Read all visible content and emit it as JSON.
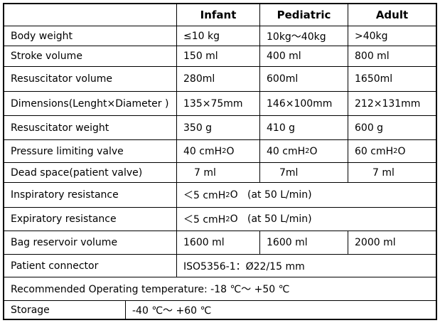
{
  "headers": {
    "infant": "Infant",
    "pediatric": "Pediatric",
    "adult": "Adult"
  },
  "rows": [
    {
      "label": "Body weight",
      "infant": "≤10 kg",
      "pediatric": "10kg～40kg",
      "adult": ">40kg"
    },
    {
      "label": "Stroke volume",
      "infant": "150 ml",
      "pediatric": "400 ml",
      "adult": "800 ml"
    },
    {
      "label": "Resuscitator volume",
      "infant": "280ml",
      "pediatric": "600ml",
      "adult": "1650ml"
    },
    {
      "label": "Dimensions(Lenght×Diameter )",
      "infant": "135×75mm",
      "pediatric": "146×100mm",
      "adult": "212×131mm"
    },
    {
      "label": "Resuscitator weight",
      "infant": "350 g",
      "pediatric": "410 g",
      "adult": "600 g"
    },
    {
      "label": "Pressure limiting valve",
      "infant": "40 cmH",
      "pediatric": "40 cmH",
      "adult": "60 cmH",
      "sub": "2",
      "suffix": "O"
    },
    {
      "label": "Dead space(patient valve)",
      "infant": "7 ml",
      "pediatric": "7ml",
      "adult": "7 ml"
    },
    {
      "label": "Inspiratory resistance",
      "value": "＜5 cmH",
      "sub": "2",
      "suffix": "O   (at 50 L/min)"
    },
    {
      "label": "Expiratory resistance",
      "value": "＜5 cmH",
      "sub": "2",
      "suffix": "O   (at 50 L/min)"
    },
    {
      "label": "Bag reservoir volume",
      "infant": "1600 ml",
      "pediatric": "1600 ml",
      "adult": "2000 ml"
    },
    {
      "label": "Patient connector",
      "value": "ISO5356-1：Ø22/15 mm"
    },
    {
      "label": "Recommended Operating temperature: -18 ℃～ +50 ℃"
    },
    {
      "label": "Storage",
      "value": "-40 ℃～ +60 ℃"
    }
  ]
}
